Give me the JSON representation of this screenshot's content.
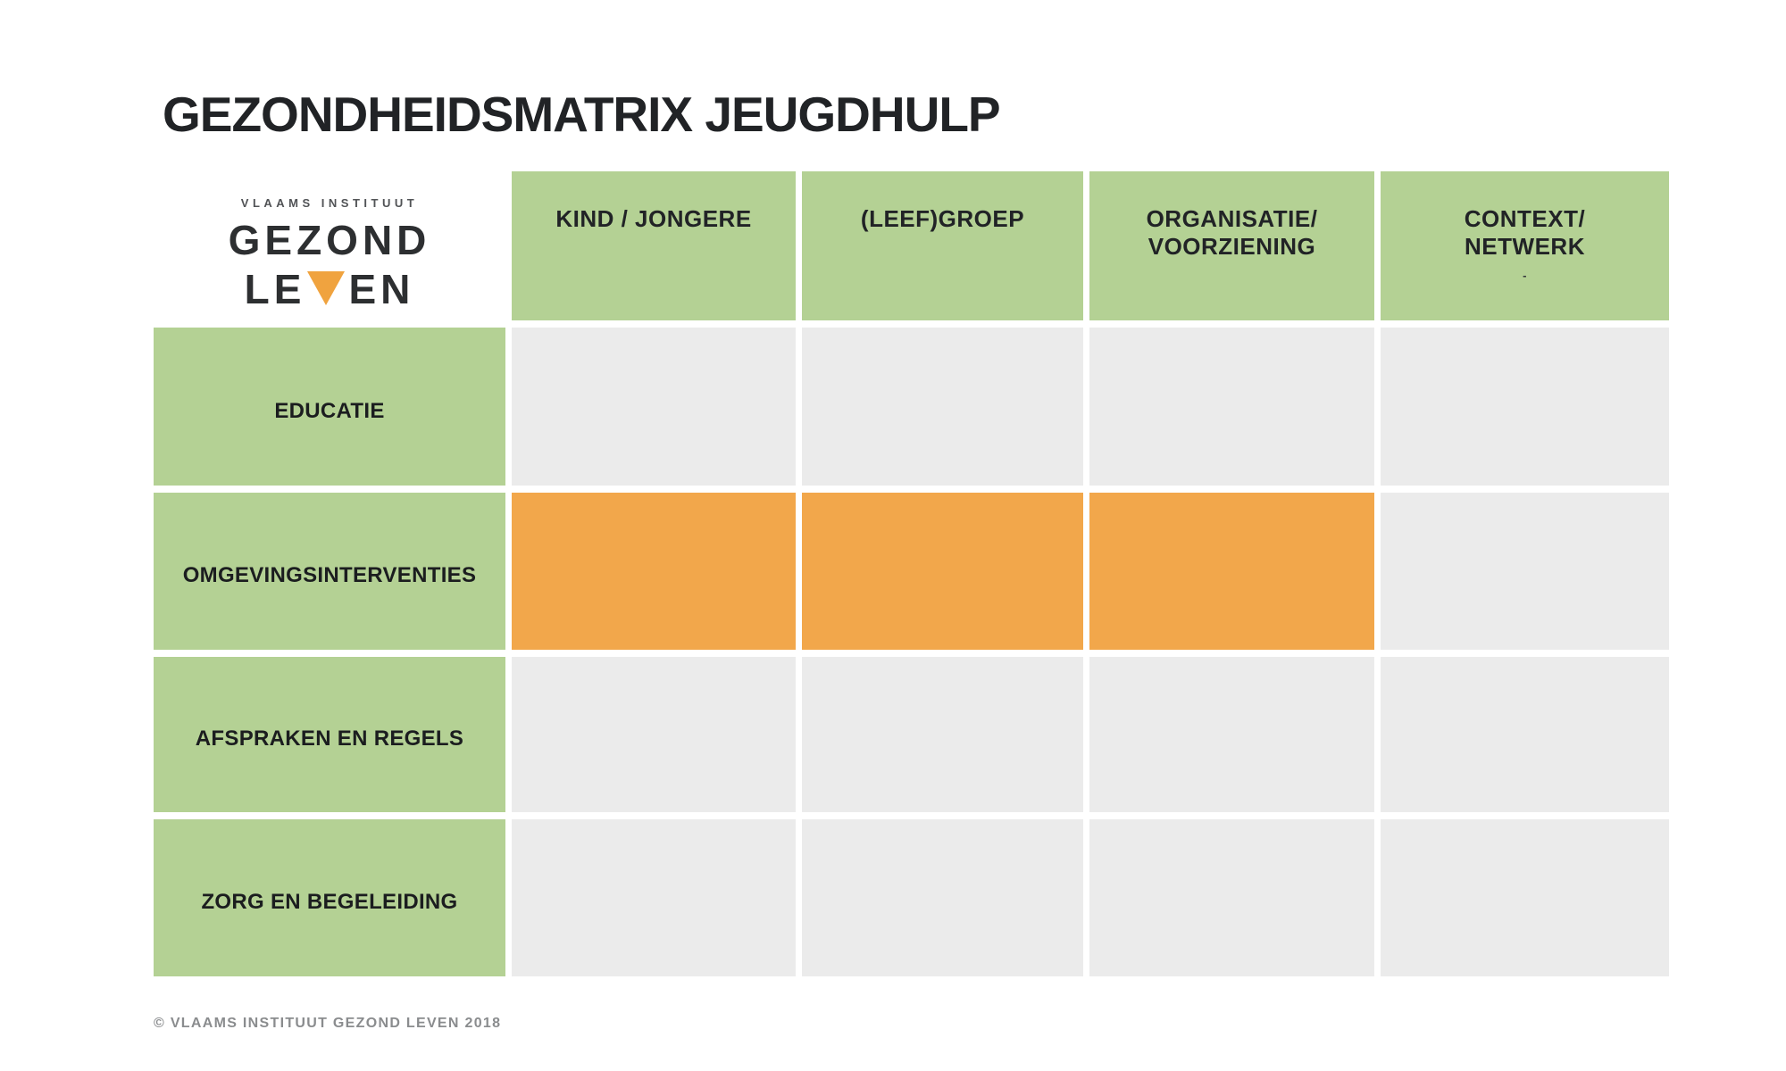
{
  "page": {
    "title": "GEZONDHEIDSMATRIX JEUGDHULP",
    "footer": "© VLAAMS INSTITUUT GEZOND LEVEN 2018"
  },
  "logo": {
    "top_line": "VLAAMS INSTITUUT",
    "main_line": "GEZOND",
    "leven_left": "LE",
    "leven_right": "EN",
    "triangle_icon": "orange-down-triangle"
  },
  "colors": {
    "green": "#b4d194",
    "gray": "#ebebeb",
    "orange": "#f2a74b",
    "logo_orange": "#f0a33f",
    "text_dark": "#212326",
    "footer_gray": "#8a8c8e"
  },
  "matrix": {
    "column_headers": [
      {
        "lines": [
          "KIND / JONGERE"
        ]
      },
      {
        "lines": [
          "(LEEF)GROEP"
        ]
      },
      {
        "lines": [
          "ORGANISATIE/",
          "VOORZIENING"
        ]
      },
      {
        "lines": [
          "CONTEXT/",
          "NETWERK"
        ],
        "note": "-"
      }
    ],
    "rows": [
      {
        "label": "EDUCATIE",
        "cells": [
          "empty",
          "empty",
          "empty",
          "empty"
        ]
      },
      {
        "label": "OMGEVINGSINTERVENTIES",
        "cells": [
          "highlighted",
          "highlighted",
          "highlighted",
          "empty"
        ]
      },
      {
        "label": "AFSPRAKEN EN REGELS",
        "cells": [
          "empty",
          "empty",
          "empty",
          "empty"
        ]
      },
      {
        "label": "ZORG EN BEGELEIDING",
        "cells": [
          "empty",
          "empty",
          "empty",
          "empty"
        ]
      }
    ]
  }
}
